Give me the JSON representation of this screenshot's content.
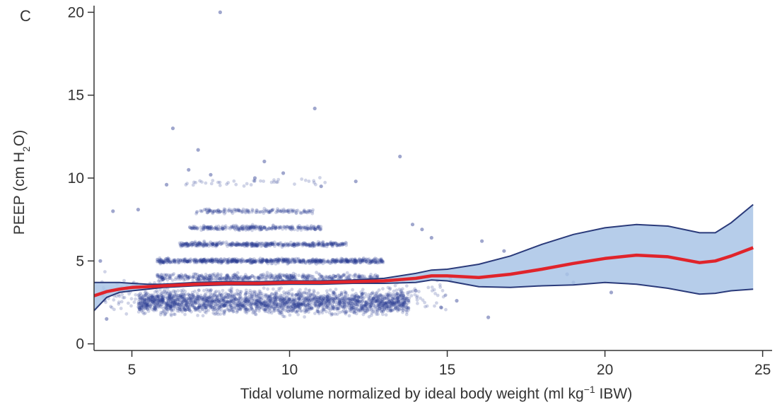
{
  "chart_data": {
    "type": "scatter",
    "panel_label": "C",
    "title": "",
    "xlabel_parts": [
      "Tidal volume normalized by ideal body weight (ml kg",
      "−1",
      " IBW)"
    ],
    "ylabel_parts": [
      "PEEP  (cm H",
      "2",
      "O)"
    ],
    "xlim": [
      3.8,
      25.3
    ],
    "ylim": [
      -0.4,
      20.4
    ],
    "x_ticks": [
      {
        "value": 5,
        "label": "5"
      },
      {
        "value": 10,
        "label": "10"
      },
      {
        "value": 15,
        "label": "15"
      },
      {
        "value": 20,
        "label": "20"
      },
      {
        "value": 25,
        "label": "25"
      }
    ],
    "y_ticks": [
      {
        "value": 0,
        "label": "0"
      },
      {
        "value": 5,
        "label": "5"
      },
      {
        "value": 10,
        "label": "10"
      },
      {
        "value": 15,
        "label": "15"
      },
      {
        "value": 20,
        "label": "20"
      }
    ],
    "grid": false,
    "colors": {
      "points": "#2b3990",
      "smooth_line": "#e0242b",
      "ci_fill": "#a9c4e6",
      "ci_border": "#2a3a7a",
      "axis": "#333333"
    },
    "series": [
      {
        "kind": "scatter",
        "points": [
          [
            7.8,
            20.0
          ],
          [
            10.8,
            14.2
          ],
          [
            6.3,
            13.0
          ],
          [
            7.1,
            11.7
          ],
          [
            13.5,
            11.3
          ],
          [
            9.2,
            11.0
          ],
          [
            6.8,
            10.5
          ],
          [
            7.5,
            10.2
          ],
          [
            8.9,
            10.0
          ],
          [
            9.8,
            10.3
          ],
          [
            12.1,
            9.8
          ],
          [
            6.1,
            9.6
          ],
          [
            11.0,
            9.5
          ],
          [
            4.4,
            8.0
          ],
          [
            5.2,
            8.1
          ],
          [
            14.2,
            6.9
          ],
          [
            14.5,
            6.4
          ],
          [
            16.1,
            6.2
          ],
          [
            16.8,
            5.6
          ],
          [
            18.8,
            4.2
          ],
          [
            20.2,
            3.1
          ],
          [
            19.0,
            3.7
          ],
          [
            15.3,
            2.6
          ],
          [
            14.8,
            2.2
          ],
          [
            13.9,
            7.2
          ],
          [
            4.0,
            5.0
          ],
          [
            4.2,
            1.5
          ],
          [
            14.0,
            3.2
          ],
          [
            15.1,
            3.9
          ],
          [
            16.3,
            1.6
          ]
        ],
        "dense_clusters": [
          {
            "x_range": [
              5.2,
              13.8
            ],
            "y": 2.5,
            "y_spread": 1.0,
            "count": 2200
          },
          {
            "x_range": [
              5.8,
              12.8
            ],
            "y": 4.0,
            "y_spread": 0.35,
            "count": 500
          },
          {
            "x_range": [
              5.8,
              13.0
            ],
            "y": 5.0,
            "y_spread": 0.2,
            "count": 700
          },
          {
            "x_range": [
              6.5,
              11.8
            ],
            "y": 6.0,
            "y_spread": 0.2,
            "count": 420
          },
          {
            "x_range": [
              6.8,
              11.0
            ],
            "y": 7.0,
            "y_spread": 0.2,
            "count": 260
          },
          {
            "x_range": [
              7.0,
              10.8
            ],
            "y": 8.0,
            "y_spread": 0.2,
            "count": 150
          },
          {
            "x_range": [
              6.6,
              11.2
            ],
            "y": 9.8,
            "y_spread": 0.35,
            "count": 40
          },
          {
            "x_range": [
              4.0,
              6.5
            ],
            "y": 3.0,
            "y_spread": 1.5,
            "count": 120
          },
          {
            "x_range": [
              13.0,
              15.0
            ],
            "y": 3.0,
            "y_spread": 1.5,
            "count": 60
          }
        ]
      },
      {
        "kind": "smooth",
        "x": [
          3.8,
          4.2,
          4.6,
          5.0,
          5.5,
          6.0,
          7.0,
          8.0,
          9.0,
          10.0,
          11.0,
          12.0,
          13.0,
          14.0,
          14.5,
          15.0,
          16.0,
          17.0,
          18.0,
          19.0,
          20.0,
          21.0,
          22.0,
          23.0,
          23.5,
          24.0,
          24.7
        ],
        "y": [
          2.9,
          3.15,
          3.3,
          3.4,
          3.45,
          3.5,
          3.6,
          3.65,
          3.65,
          3.7,
          3.7,
          3.75,
          3.8,
          3.95,
          4.1,
          4.1,
          4.0,
          4.2,
          4.5,
          4.85,
          5.15,
          5.35,
          5.25,
          4.9,
          5.0,
          5.3,
          5.8
        ],
        "ci_upper": [
          3.7,
          3.7,
          3.7,
          3.65,
          3.6,
          3.6,
          3.7,
          3.75,
          3.75,
          3.8,
          3.8,
          3.85,
          3.95,
          4.25,
          4.45,
          4.5,
          4.8,
          5.3,
          6.0,
          6.6,
          7.0,
          7.2,
          7.1,
          6.7,
          6.7,
          7.3,
          8.4
        ],
        "ci_lower": [
          2.0,
          2.8,
          3.1,
          3.2,
          3.3,
          3.4,
          3.5,
          3.55,
          3.55,
          3.6,
          3.6,
          3.65,
          3.65,
          3.7,
          3.85,
          3.8,
          3.45,
          3.4,
          3.5,
          3.55,
          3.7,
          3.6,
          3.35,
          3.0,
          3.05,
          3.2,
          3.3
        ]
      }
    ]
  }
}
